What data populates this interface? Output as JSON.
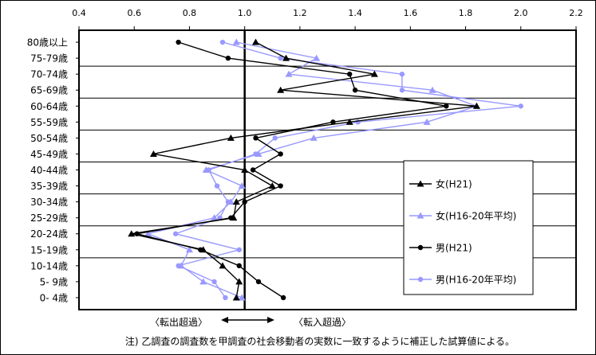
{
  "chart_data": {
    "type": "line",
    "orientation": "horizontal",
    "xlim": [
      0.4,
      2.2
    ],
    "xticks": [
      "0.4",
      "0.6",
      "0.8",
      "1.0",
      "1.2",
      "1.4",
      "1.6",
      "1.8",
      "2.0",
      "2.2"
    ],
    "x_axis_position": "top",
    "vertical_grid": false,
    "horizontal_grid": true,
    "reference_line": 1.0,
    "categories": [
      "80歳以上",
      "75-79歳",
      "70-74歳",
      "65-69歳",
      "60-64歳",
      "55-59歳",
      "50-54歳",
      "45-49歳",
      "40-44歳",
      "35-39歳",
      "30-34歳",
      "25-29歳",
      "20-24歳",
      "15-19歳",
      "10-14歳",
      "5- 9歳",
      "0- 4歳"
    ],
    "series": [
      {
        "name": "女(H21)",
        "color": "#000000",
        "marker": "triangle",
        "values": [
          1.04,
          1.15,
          1.47,
          1.13,
          1.84,
          1.38,
          0.95,
          0.67,
          1.0,
          1.1,
          0.97,
          0.96,
          0.59,
          0.85,
          0.92,
          0.98,
          0.97
        ]
      },
      {
        "name": "女(H16-20年平均)",
        "color": "#9999ff",
        "marker": "triangle",
        "values": [
          0.97,
          1.26,
          1.16,
          1.68,
          1.84,
          1.66,
          1.25,
          1.05,
          0.86,
          0.99,
          0.95,
          0.89,
          0.65,
          0.8,
          0.77,
          0.85,
          0.99
        ]
      },
      {
        "name": "男(H21)",
        "color": "#000000",
        "marker": "circle",
        "values": [
          0.76,
          0.94,
          1.38,
          1.4,
          1.73,
          1.32,
          1.04,
          1.13,
          1.03,
          1.13,
          1.0,
          0.95,
          0.61,
          0.84,
          0.98,
          1.05,
          1.14
        ]
      },
      {
        "name": "男(H16-20年平均)",
        "color": "#9999ff",
        "marker": "circle",
        "values": [
          0.92,
          1.13,
          1.57,
          1.57,
          2.0,
          1.41,
          1.11,
          1.04,
          0.87,
          0.9,
          0.94,
          0.91,
          0.75,
          0.98,
          0.76,
          0.89,
          0.93
        ]
      }
    ],
    "legend_position": "right",
    "annotations": {
      "left_label": "〈転出超過〉",
      "right_label": "〈転入超過〉"
    },
    "note": "注) 乙調査の調査数を甲調査の社会移動者の実数に一致するように補正した試算値による。"
  }
}
